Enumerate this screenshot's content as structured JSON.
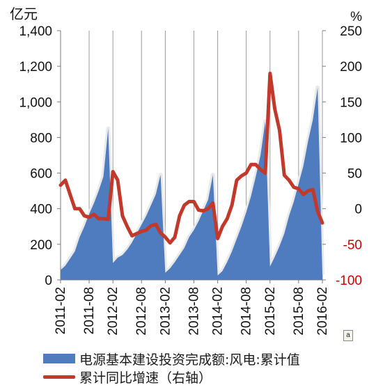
{
  "chart_data": {
    "type": "area+line",
    "left_axis": {
      "unit": "亿元",
      "ticks": [
        "0",
        "200",
        "400",
        "600",
        "800",
        "1,000",
        "1,200",
        "1,400"
      ],
      "ylim": [
        0,
        1400
      ]
    },
    "right_axis": {
      "unit": "%",
      "ticks": [
        "-100",
        "-50",
        "0",
        "50",
        "100",
        "150",
        "200",
        "250"
      ],
      "ticks_red": [
        "-100",
        "-50"
      ],
      "ylim": [
        -100,
        250
      ]
    },
    "x_tick_labels": [
      "2011-02",
      "2011-08",
      "2012-02",
      "2012-08",
      "2013-02",
      "2013-08",
      "2014-02",
      "2014-08",
      "2015-02",
      "2015-08",
      "2016-02"
    ],
    "x": [
      "2011-02",
      "2011-03",
      "2011-04",
      "2011-05",
      "2011-06",
      "2011-07",
      "2011-08",
      "2011-09",
      "2011-10",
      "2011-11",
      "2011-12",
      "2012-02",
      "2012-03",
      "2012-04",
      "2012-05",
      "2012-06",
      "2012-07",
      "2012-08",
      "2012-09",
      "2012-10",
      "2012-11",
      "2012-12",
      "2013-02",
      "2013-03",
      "2013-04",
      "2013-05",
      "2013-06",
      "2013-07",
      "2013-08",
      "2013-09",
      "2013-10",
      "2013-11",
      "2013-12",
      "2014-02",
      "2014-03",
      "2014-04",
      "2014-05",
      "2014-06",
      "2014-07",
      "2014-08",
      "2014-09",
      "2014-10",
      "2014-11",
      "2014-12",
      "2015-02",
      "2015-03",
      "2015-04",
      "2015-05",
      "2015-06",
      "2015-07",
      "2015-08",
      "2015-09",
      "2015-10",
      "2015-11",
      "2015-12",
      "2016-02"
    ],
    "series": [
      {
        "name": "电源基本建设投资完成额:风电:累计值",
        "axis": "left",
        "style": "area",
        "color": "#4f7bbf",
        "values": [
          55,
          80,
          120,
          160,
          240,
          300,
          370,
          430,
          500,
          580,
          850,
          95,
          125,
          140,
          170,
          210,
          260,
          310,
          360,
          420,
          480,
          590,
          40,
          65,
          100,
          140,
          180,
          240,
          280,
          330,
          390,
          450,
          590,
          25,
          50,
          100,
          160,
          230,
          300,
          380,
          470,
          580,
          700,
          890,
          75,
          130,
          190,
          260,
          360,
          440,
          540,
          640,
          780,
          900,
          1080,
          30
        ]
      },
      {
        "name": "累计同比增速（右轴）",
        "axis": "right",
        "style": "line",
        "color": "#c0392b",
        "values": [
          33,
          40,
          20,
          0,
          0,
          -10,
          -12,
          -8,
          -14,
          -14,
          -15,
          52,
          40,
          -10,
          -25,
          -38,
          -35,
          -32,
          -30,
          -24,
          -22,
          -34,
          -40,
          -48,
          -40,
          -10,
          5,
          10,
          10,
          -2,
          -3,
          0,
          8,
          -42,
          -25,
          -14,
          5,
          40,
          46,
          50,
          62,
          62,
          55,
          50,
          190,
          140,
          110,
          47,
          40,
          30,
          28,
          20,
          25,
          27,
          -4,
          -20
        ]
      }
    ],
    "grid": "vertical",
    "legend_position": "bottom"
  },
  "misc": {
    "tag": "a"
  }
}
